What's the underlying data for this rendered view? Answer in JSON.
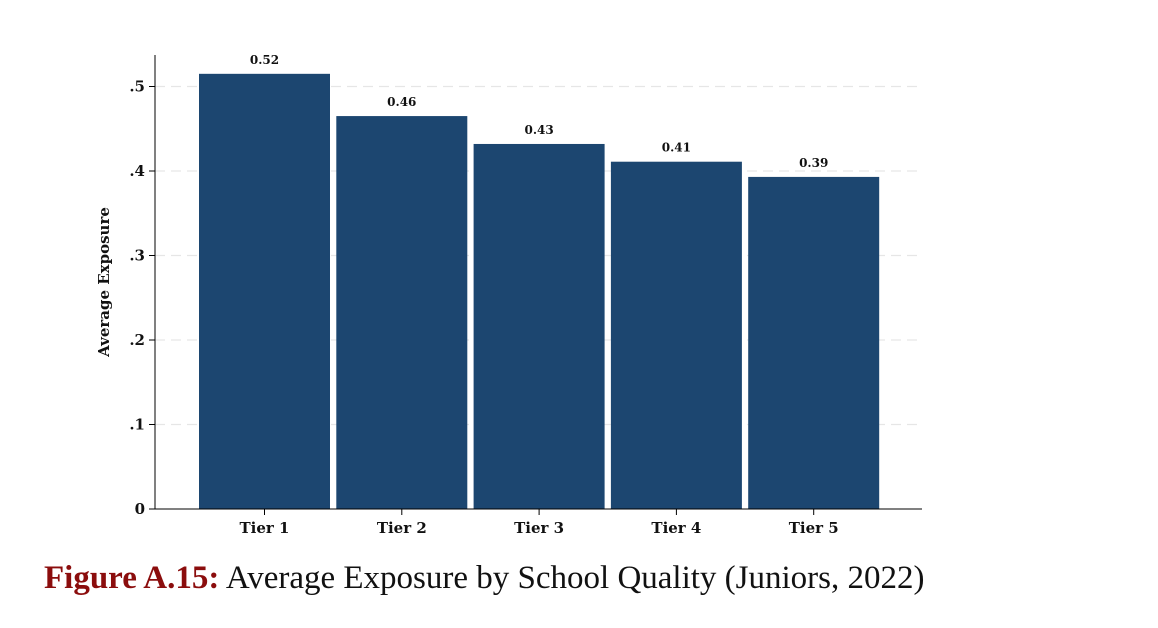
{
  "chart_data": {
    "type": "bar",
    "categories": [
      "Tier 1",
      "Tier 2",
      "Tier 3",
      "Tier 4",
      "Tier 5"
    ],
    "values": [
      0.515,
      0.465,
      0.432,
      0.411,
      0.393
    ],
    "value_labels": [
      "0.52",
      "0.46",
      "0.43",
      "0.41",
      "0.39"
    ],
    "ylabel": "Average Exposure",
    "xlabel": "",
    "ylim": [
      0,
      0.54
    ],
    "yticks": [
      0,
      0.1,
      0.2,
      0.3,
      0.4,
      0.5
    ],
    "ytick_labels": [
      "0",
      ".1",
      ".2",
      ".3",
      ".4",
      ".5"
    ],
    "grid": "horizontal dashed",
    "bar_color": "#1c4670",
    "grid_color": "#e6e6e6"
  },
  "caption": {
    "label": "Figure A.15:",
    "text": "Average Exposure by School Quality (Juniors, 2022)",
    "label_color": "#8b0d0d"
  }
}
